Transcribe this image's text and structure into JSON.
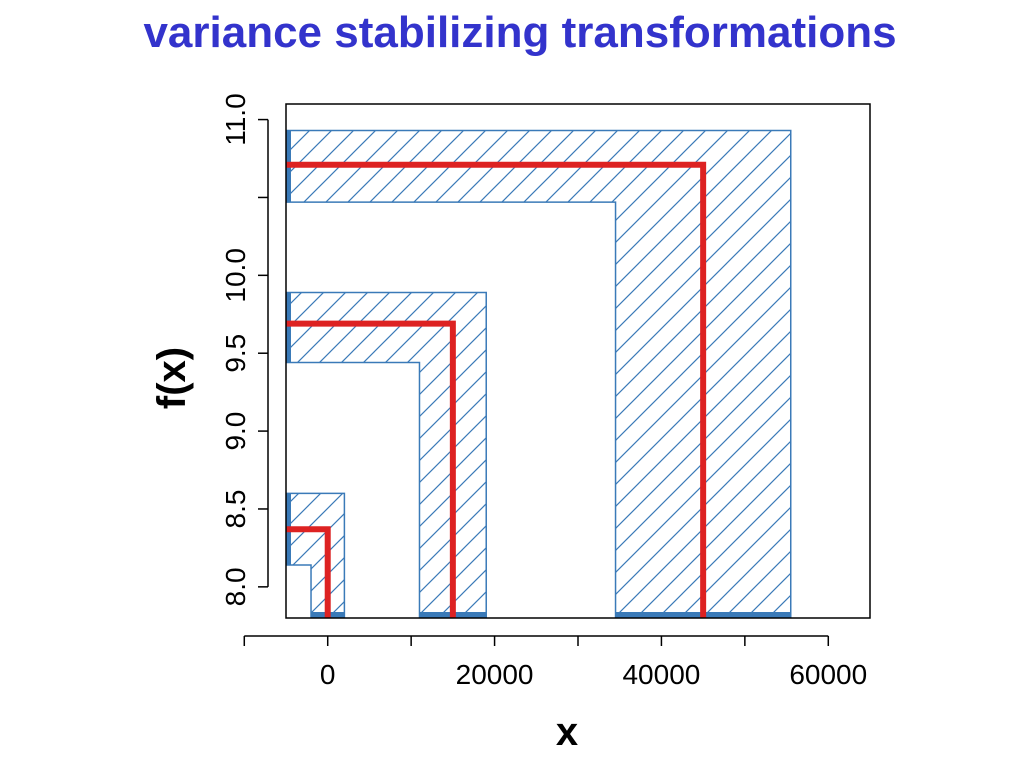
{
  "title": "variance stabilizing transformations",
  "chart_data": {
    "type": "line",
    "xlabel": "x",
    "ylabel": "f(x)",
    "xlim": [
      -5000,
      65000
    ],
    "ylim": [
      7.8,
      11.1
    ],
    "x_ticks": [
      -10000,
      0,
      10000,
      20000,
      30000,
      40000,
      50000,
      60000
    ],
    "x_tick_labels": [
      "0",
      "20000",
      "40000",
      "60000"
    ],
    "x_tick_label_values": [
      0,
      20000,
      40000,
      60000
    ],
    "y_ticks": [
      8.0,
      8.5,
      9.0,
      9.5,
      10.0,
      10.5,
      11.0
    ],
    "y_tick_labels": [
      "8.0",
      "8.5",
      "9.0",
      "9.5",
      "10.0",
      "11.0"
    ],
    "y_tick_label_values": [
      8.0,
      8.5,
      9.0,
      9.5,
      10.0,
      11.0
    ],
    "grid": false,
    "colors": {
      "curve": "#dd2222",
      "band": "#3a7ab8",
      "title": "#3333cc"
    },
    "series": [
      {
        "mean_x": 0,
        "f_mean": 8.37,
        "x_low": -2000,
        "x_high": 2000,
        "f_low": 8.14,
        "f_high": 8.6
      },
      {
        "mean_x": 15000,
        "f_mean": 9.69,
        "x_low": 11000,
        "x_high": 19000,
        "f_low": 9.44,
        "f_high": 9.89
      },
      {
        "mean_x": 45000,
        "f_mean": 10.71,
        "x_low": 34500,
        "x_high": 55500,
        "f_low": 10.47,
        "f_high": 10.93
      }
    ]
  }
}
